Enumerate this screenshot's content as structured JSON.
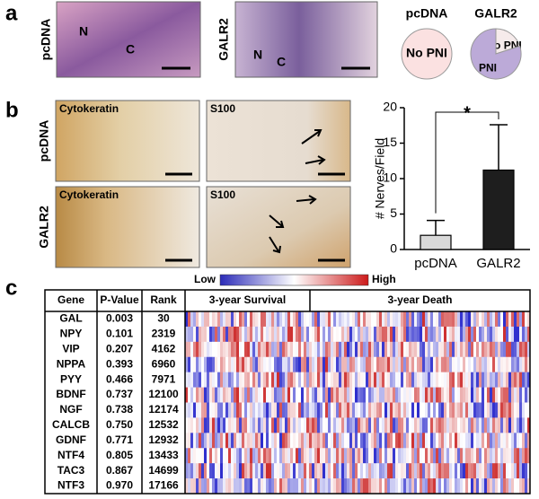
{
  "panel_a": {
    "label": "a",
    "row_labels": [
      "pcDNA",
      "GALR2"
    ],
    "marks": [
      "N",
      "C"
    ]
  },
  "panel_b": {
    "label": "b",
    "row_labels": [
      "pcDNA",
      "GALR2"
    ],
    "stain_labels": [
      "Cytokeratin",
      "S100"
    ]
  },
  "panel_c": {
    "label": "c",
    "legend": [
      "Low",
      "High"
    ],
    "heatmap_groups": [
      "3-year Survival",
      "3-year Death"
    ],
    "table": {
      "header": [
        "Gene",
        "P-Value",
        "Rank"
      ],
      "rows": [
        [
          "GAL",
          "0.003",
          "30"
        ],
        [
          "NPY",
          "0.101",
          "2319"
        ],
        [
          "VIP",
          "0.207",
          "4162"
        ],
        [
          "NPPA",
          "0.393",
          "6960"
        ],
        [
          "PYY",
          "0.466",
          "7971"
        ],
        [
          "BDNF",
          "0.737",
          "12100"
        ],
        [
          "NGF",
          "0.738",
          "12174"
        ],
        [
          "CALCB",
          "0.750",
          "12532"
        ],
        [
          "GDNF",
          "0.771",
          "12932"
        ],
        [
          "NTF4",
          "0.805",
          "13433"
        ],
        [
          "TAC3",
          "0.867",
          "14699"
        ],
        [
          "NTF3",
          "0.970",
          "17166"
        ]
      ]
    }
  },
  "chart_data": [
    {
      "type": "pie",
      "title": "pcDNA",
      "categories": [
        "No PNI"
      ],
      "values": [
        100
      ],
      "colors": [
        "#fbe1e1"
      ]
    },
    {
      "type": "pie",
      "title": "GALR2",
      "categories": [
        "No PNI",
        "PNI"
      ],
      "values": [
        20,
        80
      ],
      "colors": [
        "#f6ebeb",
        "#bcaad8"
      ]
    },
    {
      "type": "bar",
      "ylabel": "# Nerves/Field",
      "categories": [
        "pcDNA",
        "GALR2"
      ],
      "values": [
        2,
        11.2
      ],
      "errors": [
        2.1,
        6.4
      ],
      "colors": [
        "#d9d9d9",
        "#1e1e1e"
      ],
      "ylim": [
        0,
        20
      ],
      "yticks": [
        0,
        5,
        10,
        15,
        20
      ],
      "annotation": "*"
    }
  ]
}
